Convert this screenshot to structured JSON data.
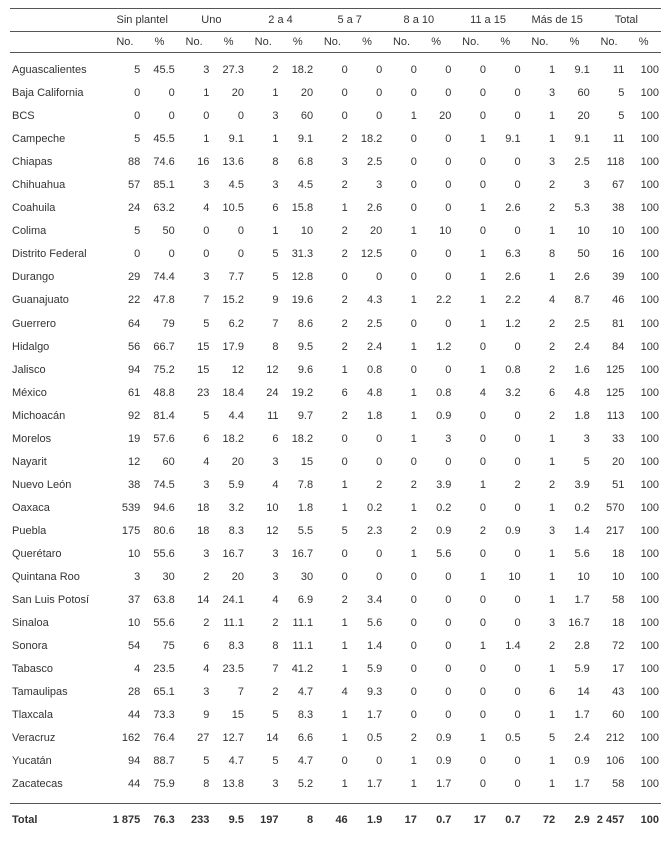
{
  "columns": {
    "groups": [
      "Sin plantel",
      "Uno",
      "2 a 4",
      "5 a 7",
      "8 a 10",
      "11 a 15",
      "Más de 15",
      "Total"
    ],
    "sub": [
      "No.",
      "%"
    ]
  },
  "rows": [
    {
      "name": "Aguascalientes",
      "v": [
        "5",
        "45.5",
        "3",
        "27.3",
        "2",
        "18.2",
        "0",
        "0",
        "0",
        "0",
        "0",
        "0",
        "1",
        "9.1",
        "11",
        "100"
      ]
    },
    {
      "name": "Baja California",
      "v": [
        "0",
        "0",
        "1",
        "20",
        "1",
        "20",
        "0",
        "0",
        "0",
        "0",
        "0",
        "0",
        "3",
        "60",
        "5",
        "100"
      ]
    },
    {
      "name": "BCS",
      "v": [
        "0",
        "0",
        "0",
        "0",
        "3",
        "60",
        "0",
        "0",
        "1",
        "20",
        "0",
        "0",
        "1",
        "20",
        "5",
        "100"
      ]
    },
    {
      "name": "Campeche",
      "v": [
        "5",
        "45.5",
        "1",
        "9.1",
        "1",
        "9.1",
        "2",
        "18.2",
        "0",
        "0",
        "1",
        "9.1",
        "1",
        "9.1",
        "11",
        "100"
      ]
    },
    {
      "name": "Chiapas",
      "v": [
        "88",
        "74.6",
        "16",
        "13.6",
        "8",
        "6.8",
        "3",
        "2.5",
        "0",
        "0",
        "0",
        "0",
        "3",
        "2.5",
        "118",
        "100"
      ]
    },
    {
      "name": "Chihuahua",
      "v": [
        "57",
        "85.1",
        "3",
        "4.5",
        "3",
        "4.5",
        "2",
        "3",
        "0",
        "0",
        "0",
        "0",
        "2",
        "3",
        "67",
        "100"
      ]
    },
    {
      "name": "Coahuila",
      "v": [
        "24",
        "63.2",
        "4",
        "10.5",
        "6",
        "15.8",
        "1",
        "2.6",
        "0",
        "0",
        "1",
        "2.6",
        "2",
        "5.3",
        "38",
        "100"
      ]
    },
    {
      "name": "Colima",
      "v": [
        "5",
        "50",
        "0",
        "0",
        "1",
        "10",
        "2",
        "20",
        "1",
        "10",
        "0",
        "0",
        "1",
        "10",
        "10",
        "100"
      ]
    },
    {
      "name": "Distrito Federal",
      "v": [
        "0",
        "0",
        "0",
        "0",
        "5",
        "31.3",
        "2",
        "12.5",
        "0",
        "0",
        "1",
        "6.3",
        "8",
        "50",
        "16",
        "100"
      ]
    },
    {
      "name": "Durango",
      "v": [
        "29",
        "74.4",
        "3",
        "7.7",
        "5",
        "12.8",
        "0",
        "0",
        "0",
        "0",
        "1",
        "2.6",
        "1",
        "2.6",
        "39",
        "100"
      ]
    },
    {
      "name": "Guanajuato",
      "v": [
        "22",
        "47.8",
        "7",
        "15.2",
        "9",
        "19.6",
        "2",
        "4.3",
        "1",
        "2.2",
        "1",
        "2.2",
        "4",
        "8.7",
        "46",
        "100"
      ]
    },
    {
      "name": "Guerrero",
      "v": [
        "64",
        "79",
        "5",
        "6.2",
        "7",
        "8.6",
        "2",
        "2.5",
        "0",
        "0",
        "1",
        "1.2",
        "2",
        "2.5",
        "81",
        "100"
      ]
    },
    {
      "name": "Hidalgo",
      "v": [
        "56",
        "66.7",
        "15",
        "17.9",
        "8",
        "9.5",
        "2",
        "2.4",
        "1",
        "1.2",
        "0",
        "0",
        "2",
        "2.4",
        "84",
        "100"
      ]
    },
    {
      "name": "Jalisco",
      "v": [
        "94",
        "75.2",
        "15",
        "12",
        "12",
        "9.6",
        "1",
        "0.8",
        "0",
        "0",
        "1",
        "0.8",
        "2",
        "1.6",
        "125",
        "100"
      ]
    },
    {
      "name": "México",
      "v": [
        "61",
        "48.8",
        "23",
        "18.4",
        "24",
        "19.2",
        "6",
        "4.8",
        "1",
        "0.8",
        "4",
        "3.2",
        "6",
        "4.8",
        "125",
        "100"
      ]
    },
    {
      "name": "Michoacán",
      "v": [
        "92",
        "81.4",
        "5",
        "4.4",
        "11",
        "9.7",
        "2",
        "1.8",
        "1",
        "0.9",
        "0",
        "0",
        "2",
        "1.8",
        "113",
        "100"
      ]
    },
    {
      "name": "Morelos",
      "v": [
        "19",
        "57.6",
        "6",
        "18.2",
        "6",
        "18.2",
        "0",
        "0",
        "1",
        "3",
        "0",
        "0",
        "1",
        "3",
        "33",
        "100"
      ]
    },
    {
      "name": "Nayarit",
      "v": [
        "12",
        "60",
        "4",
        "20",
        "3",
        "15",
        "0",
        "0",
        "0",
        "0",
        "0",
        "0",
        "1",
        "5",
        "20",
        "100"
      ]
    },
    {
      "name": "Nuevo León",
      "v": [
        "38",
        "74.5",
        "3",
        "5.9",
        "4",
        "7.8",
        "1",
        "2",
        "2",
        "3.9",
        "1",
        "2",
        "2",
        "3.9",
        "51",
        "100"
      ]
    },
    {
      "name": "Oaxaca",
      "v": [
        "539",
        "94.6",
        "18",
        "3.2",
        "10",
        "1.8",
        "1",
        "0.2",
        "1",
        "0.2",
        "0",
        "0",
        "1",
        "0.2",
        "570",
        "100"
      ]
    },
    {
      "name": "Puebla",
      "v": [
        "175",
        "80.6",
        "18",
        "8.3",
        "12",
        "5.5",
        "5",
        "2.3",
        "2",
        "0.9",
        "2",
        "0.9",
        "3",
        "1.4",
        "217",
        "100"
      ]
    },
    {
      "name": "Querétaro",
      "v": [
        "10",
        "55.6",
        "3",
        "16.7",
        "3",
        "16.7",
        "0",
        "0",
        "1",
        "5.6",
        "0",
        "0",
        "1",
        "5.6",
        "18",
        "100"
      ]
    },
    {
      "name": "Quintana Roo",
      "v": [
        "3",
        "30",
        "2",
        "20",
        "3",
        "30",
        "0",
        "0",
        "0",
        "0",
        "1",
        "10",
        "1",
        "10",
        "10",
        "100"
      ]
    },
    {
      "name": "San Luis Potosí",
      "v": [
        "37",
        "63.8",
        "14",
        "24.1",
        "4",
        "6.9",
        "2",
        "3.4",
        "0",
        "0",
        "0",
        "0",
        "1",
        "1.7",
        "58",
        "100"
      ]
    },
    {
      "name": "Sinaloa",
      "v": [
        "10",
        "55.6",
        "2",
        "11.1",
        "2",
        "11.1",
        "1",
        "5.6",
        "0",
        "0",
        "0",
        "0",
        "3",
        "16.7",
        "18",
        "100"
      ]
    },
    {
      "name": "Sonora",
      "v": [
        "54",
        "75",
        "6",
        "8.3",
        "8",
        "11.1",
        "1",
        "1.4",
        "0",
        "0",
        "1",
        "1.4",
        "2",
        "2.8",
        "72",
        "100"
      ]
    },
    {
      "name": "Tabasco",
      "v": [
        "4",
        "23.5",
        "4",
        "23.5",
        "7",
        "41.2",
        "1",
        "5.9",
        "0",
        "0",
        "0",
        "0",
        "1",
        "5.9",
        "17",
        "100"
      ]
    },
    {
      "name": "Tamaulipas",
      "v": [
        "28",
        "65.1",
        "3",
        "7",
        "2",
        "4.7",
        "4",
        "9.3",
        "0",
        "0",
        "0",
        "0",
        "6",
        "14",
        "43",
        "100"
      ]
    },
    {
      "name": "Tlaxcala",
      "v": [
        "44",
        "73.3",
        "9",
        "15",
        "5",
        "8.3",
        "1",
        "1.7",
        "0",
        "0",
        "0",
        "0",
        "1",
        "1.7",
        "60",
        "100"
      ]
    },
    {
      "name": "Veracruz",
      "v": [
        "162",
        "76.4",
        "27",
        "12.7",
        "14",
        "6.6",
        "1",
        "0.5",
        "2",
        "0.9",
        "1",
        "0.5",
        "5",
        "2.4",
        "212",
        "100"
      ]
    },
    {
      "name": "Yucatán",
      "v": [
        "94",
        "88.7",
        "5",
        "4.7",
        "5",
        "4.7",
        "0",
        "0",
        "1",
        "0.9",
        "0",
        "0",
        "1",
        "0.9",
        "106",
        "100"
      ]
    },
    {
      "name": "Zacatecas",
      "v": [
        "44",
        "75.9",
        "8",
        "13.8",
        "3",
        "5.2",
        "1",
        "1.7",
        "1",
        "1.7",
        "0",
        "0",
        "1",
        "1.7",
        "58",
        "100"
      ]
    }
  ],
  "total": {
    "name": "Total",
    "v": [
      "1 875",
      "76.3",
      "233",
      "9.5",
      "197",
      "8",
      "46",
      "1.9",
      "17",
      "0.7",
      "17",
      "0.7",
      "72",
      "2.9",
      "2 457",
      "100"
    ]
  }
}
